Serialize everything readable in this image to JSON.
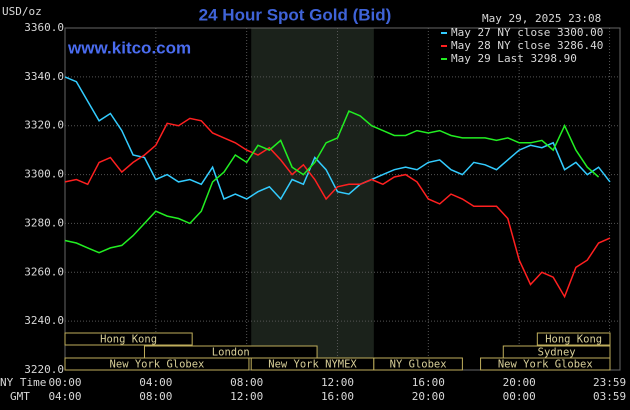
{
  "chart_data": {
    "type": "line",
    "title": "24 Hour Spot Gold (Bid)",
    "y_label": "USD/oz",
    "timestamp": "May 29, 2025 23:08",
    "site": "www.kitco.com",
    "x_row_label": "NY Time",
    "x2_row_label": "GMT",
    "xlim": [
      0,
      24
    ],
    "ylim": [
      3220,
      3360
    ],
    "xticks": [
      {
        "value": 0,
        "label": "00:00"
      },
      {
        "value": 4,
        "label": "04:00"
      },
      {
        "value": 8,
        "label": "08:00"
      },
      {
        "value": 12,
        "label": "12:00"
      },
      {
        "value": 16,
        "label": "16:00"
      },
      {
        "value": 20,
        "label": "20:00"
      },
      {
        "value": 23.98,
        "label": "23:59"
      }
    ],
    "gmt_labels": [
      "04:00",
      "08:00",
      "12:00",
      "16:00",
      "20:00",
      "00:00",
      "03:59"
    ],
    "yticks": [
      {
        "value": 3220,
        "label": "3220.0"
      },
      {
        "value": 3240,
        "label": "3240.0"
      },
      {
        "value": 3260,
        "label": "3260.0"
      },
      {
        "value": 3280,
        "label": "3280.0"
      },
      {
        "value": 3300,
        "label": "3300.0"
      },
      {
        "value": 3320,
        "label": "3320.0"
      },
      {
        "value": 3340,
        "label": "3340.0"
      },
      {
        "value": 3360,
        "label": "3360.0"
      }
    ],
    "grid": true,
    "highlight_x": [
      8.2,
      13.6
    ],
    "x": [
      0,
      0.5,
      1,
      1.5,
      2,
      2.5,
      3,
      3.5,
      4,
      4.5,
      5,
      5.5,
      6,
      6.5,
      7,
      7.5,
      8,
      8.5,
      9,
      9.5,
      10,
      10.5,
      11,
      11.5,
      12,
      12.5,
      13,
      13.5,
      14,
      14.5,
      15,
      15.5,
      16,
      16.5,
      17,
      17.5,
      18,
      18.5,
      19,
      19.5,
      20,
      20.5,
      21,
      21.5,
      22,
      22.5,
      23,
      23.5,
      24
    ],
    "series": [
      {
        "name": "May 27 NY close 3300.00",
        "color": "#33ccff",
        "values": [
          3340,
          3338,
          3330,
          3322,
          3325,
          3318,
          3308,
          3307,
          3298,
          3300,
          3297,
          3298,
          3296,
          3303,
          3290,
          3292,
          3290,
          3293,
          3295,
          3290,
          3298,
          3296,
          3307,
          3302,
          3293,
          3292,
          3296,
          3298,
          3300,
          3302,
          3303,
          3302,
          3305,
          3306,
          3302,
          3300,
          3305,
          3304,
          3302,
          3306,
          3310,
          3312,
          3311,
          3313,
          3302,
          3305,
          3300,
          3303,
          3297
        ]
      },
      {
        "name": "May 28 NY close 3286.40",
        "color": "#ff2020",
        "values": [
          3297,
          3298,
          3296,
          3305,
          3307,
          3301,
          3305,
          3308,
          3312,
          3321,
          3320,
          3323,
          3322,
          3317,
          3315,
          3313,
          3310,
          3308,
          3311,
          3306,
          3300,
          3304,
          3298,
          3290,
          3295,
          3296,
          3296,
          3298,
          3296,
          3299,
          3300,
          3297,
          3290,
          3288,
          3292,
          3290,
          3287,
          3287,
          3287,
          3282,
          3265,
          3255,
          3260,
          3258,
          3250,
          3262,
          3265,
          3272,
          3274
        ]
      },
      {
        "name": "May 29 Last 3298.90",
        "color": "#22ee22",
        "values": [
          3273,
          3272,
          3270,
          3268,
          3270,
          3271,
          3275,
          3280,
          3285,
          3283,
          3282,
          3280,
          3285,
          3297,
          3301,
          3308,
          3305,
          3312,
          3310,
          3314,
          3303,
          3300,
          3305,
          3313,
          3315,
          3326,
          3324,
          3320,
          3318,
          3316,
          3316,
          3318,
          3317,
          3318,
          3316,
          3315,
          3315,
          3315,
          3314,
          3315,
          3313,
          3313,
          3314,
          3310,
          3320,
          3310,
          3303,
          3299,
          null
        ]
      }
    ],
    "sessions": [
      [
        {
          "label": "Hong Kong",
          "start": 0,
          "end": 5.6
        },
        {
          "label": "Hong Kong",
          "start": 20.8,
          "end": 24
        }
      ],
      [
        {
          "label": "London",
          "start": 3.5,
          "end": 11.1
        },
        {
          "label": "Sydney",
          "start": 19.3,
          "end": 24
        }
      ],
      [
        {
          "label": "New York Globex",
          "start": 0,
          "end": 8.1
        },
        {
          "label": "New York NYMEX",
          "start": 8.2,
          "end": 13.6
        },
        {
          "label": "NY Globex",
          "start": 13.6,
          "end": 17.5
        },
        {
          "label": "New York Globex",
          "start": 18.3,
          "end": 24
        }
      ]
    ]
  }
}
